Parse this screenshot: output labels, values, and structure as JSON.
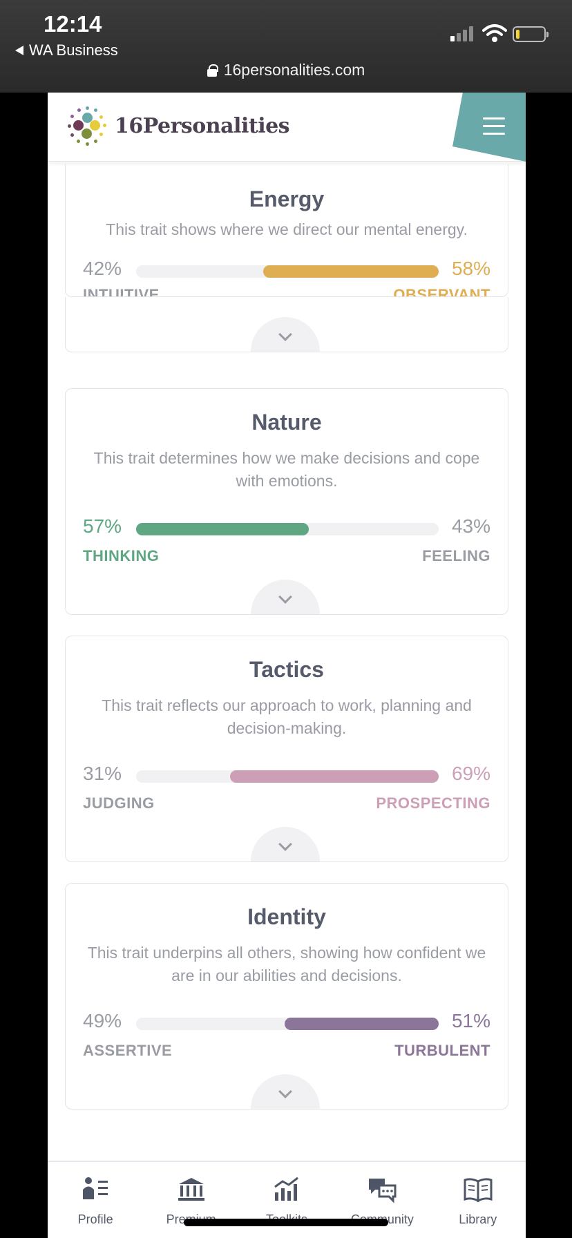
{
  "status_bar": {
    "time": "12:14",
    "back_label": "WA Business"
  },
  "browser": {
    "url": "16personalities.com"
  },
  "header": {
    "brand": "16Personalities"
  },
  "traits": [
    {
      "title": "Energy",
      "description": "This trait shows where we direct our mental energy.",
      "left_percent": "42%",
      "right_percent": "58%",
      "left_label": "INTUITIVE",
      "right_label": "OBSERVANT",
      "dominant": "right",
      "fill_fraction": 0.58,
      "color": "#dfad52"
    },
    {
      "title": "Nature",
      "description": "This trait determines how we make decisions and cope with emotions.",
      "left_percent": "57%",
      "right_percent": "43%",
      "left_label": "THINKING",
      "right_label": "FEELING",
      "dominant": "left",
      "fill_fraction": 0.57,
      "color": "#5ea782"
    },
    {
      "title": "Tactics",
      "description": "This trait reflects our approach to work, planning and decision-making.",
      "left_percent": "31%",
      "right_percent": "69%",
      "left_label": "JUDGING",
      "right_label": "PROSPECTING",
      "dominant": "right",
      "fill_fraction": 0.69,
      "color": "#cc9fb6"
    },
    {
      "title": "Identity",
      "description": "This trait underpins all others, showing how confident we are in our abilities and decisions.",
      "left_percent": "49%",
      "right_percent": "51%",
      "left_label": "ASSERTIVE",
      "right_label": "TURBULENT",
      "dominant": "right",
      "fill_fraction": 0.51,
      "color": "#8b769a"
    }
  ],
  "bottom_nav": [
    {
      "label": "Profile",
      "icon": "profile-icon"
    },
    {
      "label": "Premium",
      "icon": "premium-icon"
    },
    {
      "label": "Toolkits",
      "icon": "toolkits-icon"
    },
    {
      "label": "Community",
      "icon": "community-icon"
    },
    {
      "label": "Library",
      "icon": "library-icon"
    }
  ]
}
